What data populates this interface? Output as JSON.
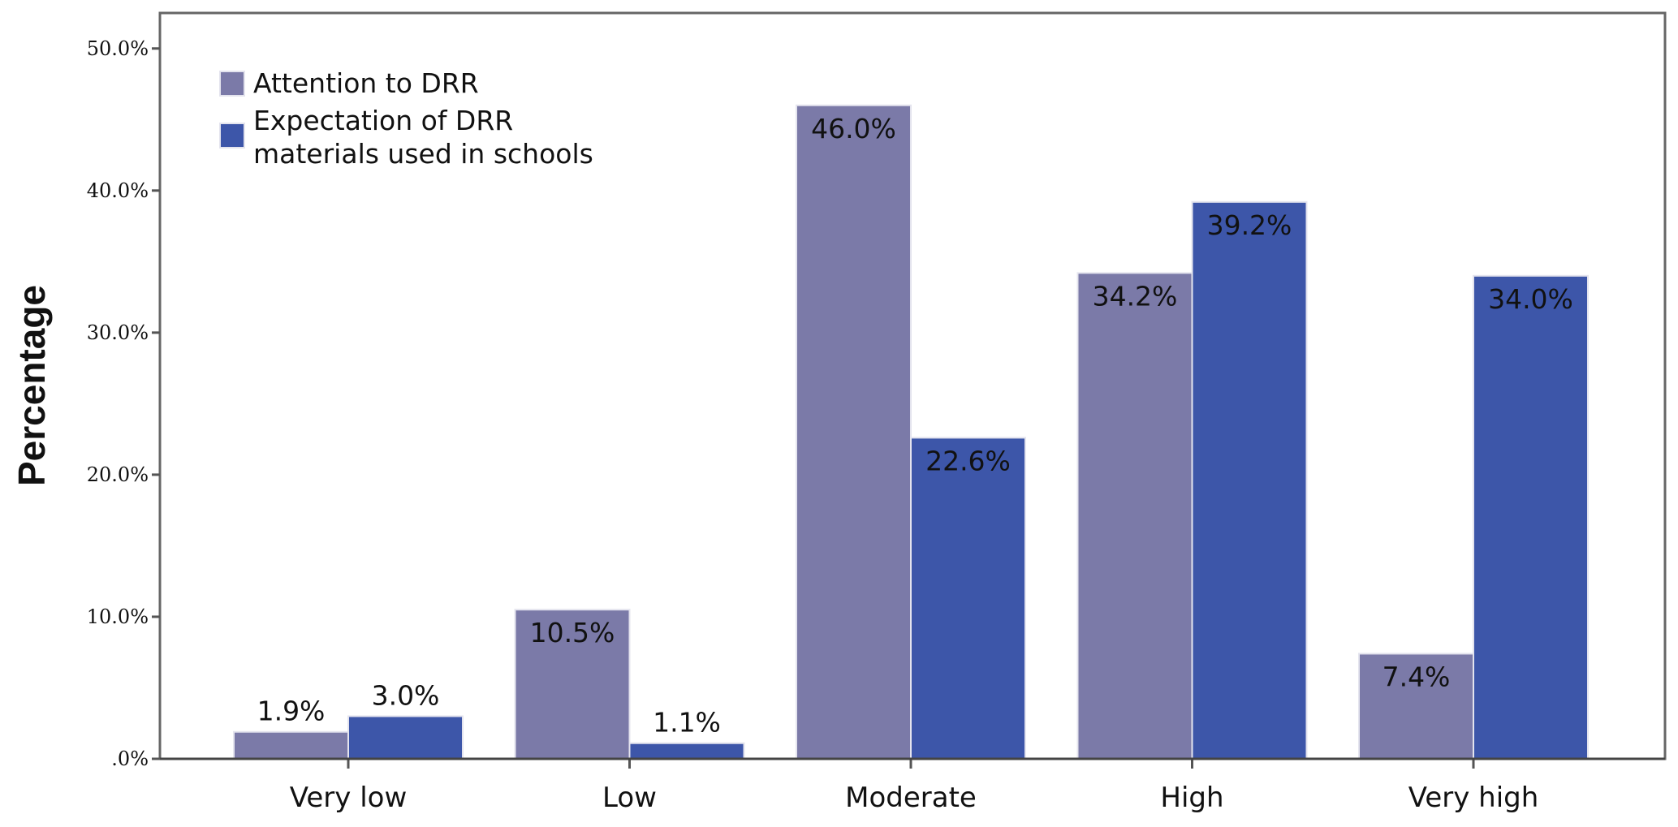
{
  "chart_data": {
    "type": "bar",
    "categories": [
      "Very low",
      "Low",
      "Moderate",
      "High",
      "Very high"
    ],
    "series": [
      {
        "name": "Attention to DRR",
        "values": [
          1.9,
          10.5,
          46.0,
          34.2,
          7.4
        ],
        "labels": [
          "1.9%",
          "10.5%",
          "46.0%",
          "34.2%",
          "7.4%"
        ],
        "color": "#7b7aa8"
      },
      {
        "name": "Expectation of DRR materials used in schools",
        "name_lines": [
          "Expectation of DRR",
          "materials used in schools"
        ],
        "values": [
          3.0,
          1.1,
          22.6,
          39.2,
          34.0
        ],
        "labels": [
          "3.0%",
          "1.1%",
          "22.6%",
          "39.2%",
          "34.0%"
        ],
        "color": "#3d56a9"
      }
    ],
    "ylabel": "Percentage",
    "xlabel": "",
    "ylim": [
      0,
      52.5
    ],
    "yticks": [
      0,
      10,
      20,
      30,
      40,
      50
    ],
    "ytick_labels": [
      ".0%",
      "10.0%",
      "20.0%",
      "30.0%",
      "40.0%",
      "50.0%"
    ],
    "grid": false,
    "legend_position": "top-left"
  }
}
